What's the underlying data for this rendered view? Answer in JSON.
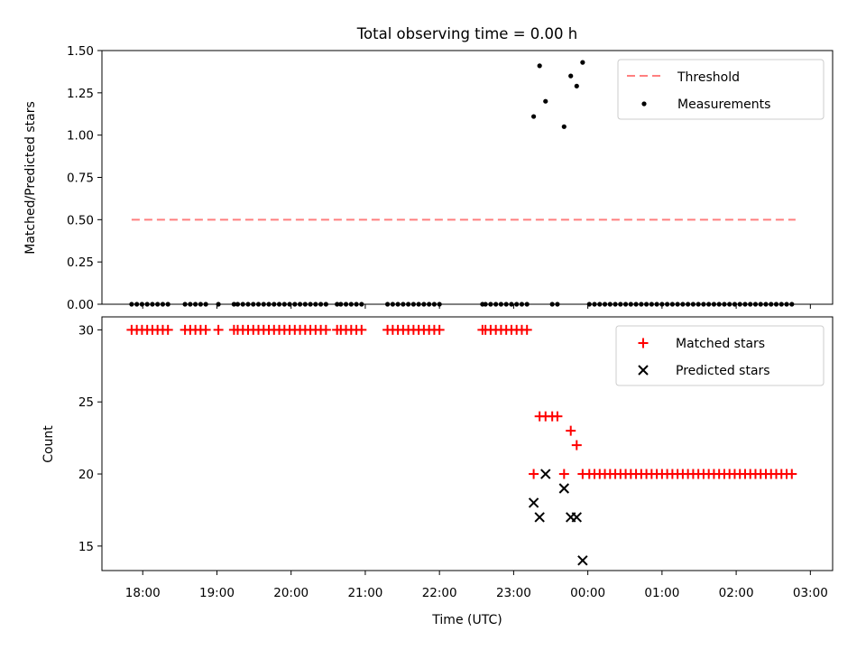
{
  "colors": {
    "threshold": "#ff7f7f",
    "measurement": "#000000",
    "matched": "#ff0000",
    "predicted": "#000000"
  },
  "chart_data": [
    {
      "type": "scatter",
      "title": "Total observing time = 0.00 h",
      "xlabel": "",
      "ylabel": "Matched/Predicted stars",
      "ylim": [
        0,
        1.5
      ],
      "yticks": [
        "0.00",
        "0.25",
        "0.50",
        "0.75",
        "1.00",
        "1.25",
        "1.50"
      ],
      "xlim_hours": [
        17.45,
        27.3
      ],
      "xtick_hours": [
        18,
        19,
        20,
        21,
        22,
        23,
        24,
        25,
        26,
        27
      ],
      "xtick_labels": [
        "18:00",
        "19:00",
        "20:00",
        "21:00",
        "22:00",
        "23:00",
        "00:00",
        "01:00",
        "02:00",
        "03:00"
      ],
      "show_xtick_labels": false,
      "legend_position": "top-right",
      "threshold": {
        "name": "Threshold",
        "value": 0.5,
        "x_start": 17.85,
        "x_end": 26.8,
        "style": "dashed"
      },
      "measurements": {
        "name": "Measurements",
        "points": [
          [
            17.85,
            0
          ],
          [
            17.92,
            0
          ],
          [
            17.99,
            0
          ],
          [
            18.06,
            0
          ],
          [
            18.13,
            0
          ],
          [
            18.2,
            0
          ],
          [
            18.27,
            0
          ],
          [
            18.34,
            0
          ],
          [
            18.57,
            0
          ],
          [
            18.64,
            0
          ],
          [
            18.71,
            0
          ],
          [
            18.78,
            0
          ],
          [
            18.85,
            0
          ],
          [
            19.02,
            0
          ],
          [
            19.23,
            0
          ],
          [
            19.28,
            0
          ],
          [
            19.35,
            0
          ],
          [
            19.42,
            0
          ],
          [
            19.49,
            0
          ],
          [
            19.56,
            0
          ],
          [
            19.63,
            0
          ],
          [
            19.7,
            0
          ],
          [
            19.77,
            0
          ],
          [
            19.84,
            0
          ],
          [
            19.91,
            0
          ],
          [
            19.98,
            0
          ],
          [
            20.05,
            0
          ],
          [
            20.12,
            0
          ],
          [
            20.19,
            0
          ],
          [
            20.26,
            0
          ],
          [
            20.33,
            0
          ],
          [
            20.4,
            0
          ],
          [
            20.47,
            0
          ],
          [
            20.62,
            0
          ],
          [
            20.67,
            0
          ],
          [
            20.74,
            0
          ],
          [
            20.81,
            0
          ],
          [
            20.88,
            0
          ],
          [
            20.95,
            0
          ],
          [
            21.3,
            0
          ],
          [
            21.37,
            0
          ],
          [
            21.44,
            0
          ],
          [
            21.51,
            0
          ],
          [
            21.58,
            0
          ],
          [
            21.65,
            0
          ],
          [
            21.72,
            0
          ],
          [
            21.79,
            0
          ],
          [
            21.86,
            0
          ],
          [
            21.93,
            0
          ],
          [
            22.0,
            0
          ],
          [
            22.58,
            0
          ],
          [
            22.62,
            0
          ],
          [
            22.69,
            0
          ],
          [
            22.76,
            0
          ],
          [
            22.83,
            0
          ],
          [
            22.9,
            0
          ],
          [
            22.97,
            0
          ],
          [
            23.04,
            0
          ],
          [
            23.11,
            0
          ],
          [
            23.18,
            0
          ],
          [
            23.52,
            0
          ],
          [
            23.59,
            0
          ],
          [
            23.27,
            1.11
          ],
          [
            23.35,
            1.41
          ],
          [
            23.43,
            1.2
          ],
          [
            23.68,
            1.05
          ],
          [
            23.77,
            1.35
          ],
          [
            23.85,
            1.29
          ],
          [
            23.93,
            1.43
          ],
          [
            24.02,
            0
          ],
          [
            24.09,
            0
          ],
          [
            24.16,
            0
          ],
          [
            24.23,
            0
          ],
          [
            24.3,
            0
          ],
          [
            24.37,
            0
          ],
          [
            24.44,
            0
          ],
          [
            24.51,
            0
          ],
          [
            24.58,
            0
          ],
          [
            24.65,
            0
          ],
          [
            24.72,
            0
          ],
          [
            24.79,
            0
          ],
          [
            24.86,
            0
          ],
          [
            24.93,
            0
          ],
          [
            25.0,
            0
          ],
          [
            25.07,
            0
          ],
          [
            25.14,
            0
          ],
          [
            25.21,
            0
          ],
          [
            25.28,
            0
          ],
          [
            25.35,
            0
          ],
          [
            25.42,
            0
          ],
          [
            25.49,
            0
          ],
          [
            25.56,
            0
          ],
          [
            25.63,
            0
          ],
          [
            25.7,
            0
          ],
          [
            25.77,
            0
          ],
          [
            25.84,
            0
          ],
          [
            25.91,
            0
          ],
          [
            25.98,
            0
          ],
          [
            26.05,
            0
          ],
          [
            26.12,
            0
          ],
          [
            26.19,
            0
          ],
          [
            26.26,
            0
          ],
          [
            26.33,
            0
          ],
          [
            26.4,
            0
          ],
          [
            26.47,
            0
          ],
          [
            26.54,
            0
          ],
          [
            26.61,
            0
          ],
          [
            26.68,
            0
          ],
          [
            26.75,
            0
          ]
        ]
      }
    },
    {
      "type": "scatter",
      "title": "",
      "xlabel": "Time (UTC)",
      "ylabel": "Count",
      "ylim": [
        13.3,
        30.9
      ],
      "yticks": [
        "15",
        "20",
        "25",
        "30"
      ],
      "ytick_values": [
        15,
        20,
        25,
        30
      ],
      "xlim_hours": [
        17.45,
        27.3
      ],
      "xtick_hours": [
        18,
        19,
        20,
        21,
        22,
        23,
        24,
        25,
        26,
        27
      ],
      "xtick_labels": [
        "18:00",
        "19:00",
        "20:00",
        "21:00",
        "22:00",
        "23:00",
        "00:00",
        "01:00",
        "02:00",
        "03:00"
      ],
      "show_xtick_labels": true,
      "legend_position": "top-right",
      "series": [
        {
          "name": "Matched stars",
          "marker": "plus",
          "points": [
            [
              17.85,
              30
            ],
            [
              17.92,
              30
            ],
            [
              17.99,
              30
            ],
            [
              18.06,
              30
            ],
            [
              18.13,
              30
            ],
            [
              18.2,
              30
            ],
            [
              18.27,
              30
            ],
            [
              18.34,
              30
            ],
            [
              18.57,
              30
            ],
            [
              18.64,
              30
            ],
            [
              18.71,
              30
            ],
            [
              18.78,
              30
            ],
            [
              18.85,
              30
            ],
            [
              19.02,
              30
            ],
            [
              19.23,
              30
            ],
            [
              19.28,
              30
            ],
            [
              19.35,
              30
            ],
            [
              19.42,
              30
            ],
            [
              19.49,
              30
            ],
            [
              19.56,
              30
            ],
            [
              19.63,
              30
            ],
            [
              19.7,
              30
            ],
            [
              19.77,
              30
            ],
            [
              19.84,
              30
            ],
            [
              19.91,
              30
            ],
            [
              19.98,
              30
            ],
            [
              20.05,
              30
            ],
            [
              20.12,
              30
            ],
            [
              20.19,
              30
            ],
            [
              20.26,
              30
            ],
            [
              20.33,
              30
            ],
            [
              20.4,
              30
            ],
            [
              20.47,
              30
            ],
            [
              20.62,
              30
            ],
            [
              20.67,
              30
            ],
            [
              20.74,
              30
            ],
            [
              20.81,
              30
            ],
            [
              20.88,
              30
            ],
            [
              20.95,
              30
            ],
            [
              21.3,
              30
            ],
            [
              21.37,
              30
            ],
            [
              21.44,
              30
            ],
            [
              21.51,
              30
            ],
            [
              21.58,
              30
            ],
            [
              21.65,
              30
            ],
            [
              21.72,
              30
            ],
            [
              21.79,
              30
            ],
            [
              21.86,
              30
            ],
            [
              21.93,
              30
            ],
            [
              22.0,
              30
            ],
            [
              22.58,
              30
            ],
            [
              22.62,
              30
            ],
            [
              22.69,
              30
            ],
            [
              22.76,
              30
            ],
            [
              22.83,
              30
            ],
            [
              22.9,
              30
            ],
            [
              22.97,
              30
            ],
            [
              23.04,
              30
            ],
            [
              23.11,
              30
            ],
            [
              23.18,
              30
            ],
            [
              23.27,
              20
            ],
            [
              23.35,
              24
            ],
            [
              23.43,
              24
            ],
            [
              23.52,
              24
            ],
            [
              23.59,
              24
            ],
            [
              23.68,
              20
            ],
            [
              23.77,
              23
            ],
            [
              23.85,
              22
            ],
            [
              23.93,
              20
            ],
            [
              24.02,
              20
            ],
            [
              24.09,
              20
            ],
            [
              24.16,
              20
            ],
            [
              24.23,
              20
            ],
            [
              24.3,
              20
            ],
            [
              24.37,
              20
            ],
            [
              24.44,
              20
            ],
            [
              24.51,
              20
            ],
            [
              24.58,
              20
            ],
            [
              24.65,
              20
            ],
            [
              24.72,
              20
            ],
            [
              24.79,
              20
            ],
            [
              24.86,
              20
            ],
            [
              24.93,
              20
            ],
            [
              25.0,
              20
            ],
            [
              25.07,
              20
            ],
            [
              25.14,
              20
            ],
            [
              25.21,
              20
            ],
            [
              25.28,
              20
            ],
            [
              25.35,
              20
            ],
            [
              25.42,
              20
            ],
            [
              25.49,
              20
            ],
            [
              25.56,
              20
            ],
            [
              25.63,
              20
            ],
            [
              25.7,
              20
            ],
            [
              25.77,
              20
            ],
            [
              25.84,
              20
            ],
            [
              25.91,
              20
            ],
            [
              25.98,
              20
            ],
            [
              26.05,
              20
            ],
            [
              26.12,
              20
            ],
            [
              26.19,
              20
            ],
            [
              26.26,
              20
            ],
            [
              26.33,
              20
            ],
            [
              26.4,
              20
            ],
            [
              26.47,
              20
            ],
            [
              26.54,
              20
            ],
            [
              26.61,
              20
            ],
            [
              26.68,
              20
            ],
            [
              26.75,
              20
            ]
          ]
        },
        {
          "name": "Predicted stars",
          "marker": "x",
          "points": [
            [
              23.27,
              18
            ],
            [
              23.35,
              17
            ],
            [
              23.43,
              20
            ],
            [
              23.68,
              19
            ],
            [
              23.77,
              17
            ],
            [
              23.85,
              17
            ],
            [
              23.93,
              14
            ]
          ]
        }
      ]
    }
  ]
}
